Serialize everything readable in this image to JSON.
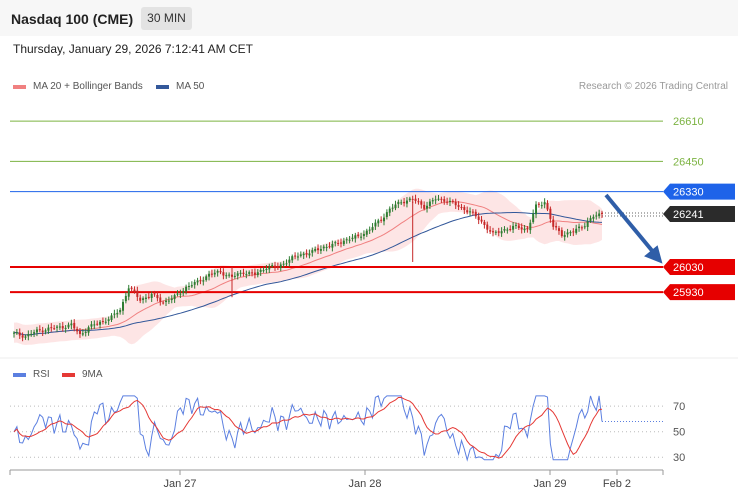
{
  "header": {
    "title": "Nasdaq 100 (CME)",
    "timeframe": "30 MIN"
  },
  "datetime": "Thursday, January 29, 2026 7:12:41 AM CET",
  "credit": "Research © 2026 Trading Central",
  "colors": {
    "ma20": "#f08080",
    "bands": "#fde0e0",
    "ma50": "#33589a",
    "candle_up": "#2e7d32",
    "candle_down": "#c62828",
    "rsi": "#5b7fe0",
    "rsi_ma": "#e53935"
  },
  "chart_data": [
    {
      "type": "candlestick",
      "legend": [
        "MA 20 + Bollinger Bands",
        "MA 50"
      ],
      "ylim": [
        25700,
        26710
      ],
      "x_ticks": [
        "Jan 27",
        "Jan 28",
        "Jan 29",
        "Feb 2"
      ],
      "levels": [
        {
          "value": 26610,
          "label": "26610",
          "color": "#7cb342",
          "kind": "target"
        },
        {
          "value": 26450,
          "label": "26450",
          "color": "#7cb342",
          "kind": "target"
        },
        {
          "value": 26330,
          "label": "26330",
          "color": "#1e63e9",
          "kind": "resistance"
        },
        {
          "value": 26241,
          "label": "26241",
          "color": "#2b2b2b",
          "kind": "last"
        },
        {
          "value": 26030,
          "label": "26030",
          "color": "#e60000",
          "kind": "support"
        },
        {
          "value": 25930,
          "label": "25930",
          "color": "#e60000",
          "kind": "support"
        }
      ],
      "anchors": [
        [
          0,
          25765
        ],
        [
          4,
          25755
        ],
        [
          8,
          25775
        ],
        [
          12,
          25785
        ],
        [
          16,
          25790
        ],
        [
          20,
          25800
        ],
        [
          23,
          25760
        ],
        [
          26,
          25790
        ],
        [
          30,
          25810
        ],
        [
          34,
          25830
        ],
        [
          37,
          25860
        ],
        [
          40,
          25950
        ],
        [
          44,
          25900
        ],
        [
          48,
          25920
        ],
        [
          52,
          25890
        ],
        [
          56,
          25910
        ],
        [
          60,
          25950
        ],
        [
          64,
          25970
        ],
        [
          68,
          26000
        ],
        [
          72,
          26010
        ],
        [
          76,
          25990
        ],
        [
          80,
          26010
        ],
        [
          84,
          26000
        ],
        [
          88,
          26030
        ],
        [
          92,
          26030
        ],
        [
          96,
          26060
        ],
        [
          100,
          26080
        ],
        [
          104,
          26090
        ],
        [
          108,
          26110
        ],
        [
          112,
          26120
        ],
        [
          116,
          26140
        ],
        [
          120,
          26150
        ],
        [
          124,
          26180
        ],
        [
          128,
          26220
        ],
        [
          131,
          26260
        ],
        [
          135,
          26290
        ],
        [
          139,
          26300
        ],
        [
          143,
          26270
        ],
        [
          147,
          26300
        ],
        [
          151,
          26295
        ],
        [
          155,
          26270
        ],
        [
          159,
          26250
        ],
        [
          163,
          26210
        ],
        [
          167,
          26160
        ],
        [
          171,
          26180
        ],
        [
          175,
          26190
        ],
        [
          179,
          26180
        ],
        [
          182,
          26270
        ],
        [
          185,
          26290
        ],
        [
          188,
          26190
        ],
        [
          191,
          26160
        ],
        [
          195,
          26170
        ],
        [
          199,
          26200
        ],
        [
          202,
          26230
        ],
        [
          205,
          26241
        ]
      ]
    },
    {
      "type": "line",
      "legend": [
        "RSI",
        "9MA"
      ],
      "ylim": [
        20,
        85
      ],
      "y_ticks": [
        70,
        50,
        30
      ],
      "last_rsi": 58
    }
  ]
}
